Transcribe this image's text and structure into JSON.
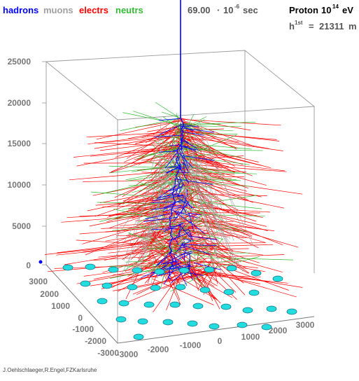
{
  "legend": {
    "hadrons": "hadrons",
    "muons": "muons",
    "electrs": "electrs",
    "neutrs": "neutrs"
  },
  "time": {
    "value": "69.00",
    "dot": "·",
    "base": "10",
    "exponent": "-6",
    "unit": "sec"
  },
  "primary": {
    "label": "Proton",
    "base": "10",
    "exponent": "14",
    "unit": "eV"
  },
  "first_interaction": {
    "symbol": "h",
    "superscript": "1st",
    "equals": "=",
    "value": "21311",
    "unit": "m"
  },
  "z_ticks": [
    "25000",
    "20000",
    "15000",
    "10000",
    "5000",
    "0"
  ],
  "y_ticks": [
    "3000",
    "2000",
    "1000",
    "0",
    "-1000",
    "-2000",
    "-3000"
  ],
  "x_ticks": [
    "-3000",
    "-2000",
    "-1000",
    "0",
    "1000",
    "2000",
    "3000"
  ],
  "credit": "J.Oehlschlaeger,R.Engel,FZKarlsruhe",
  "colors": {
    "hadrons": "#0000ff",
    "muons": "#a0a0a0",
    "electrs": "#ff0000",
    "neutrs": "#33bb33",
    "detector": "#22dddd",
    "box": "#9a9a9a"
  }
}
